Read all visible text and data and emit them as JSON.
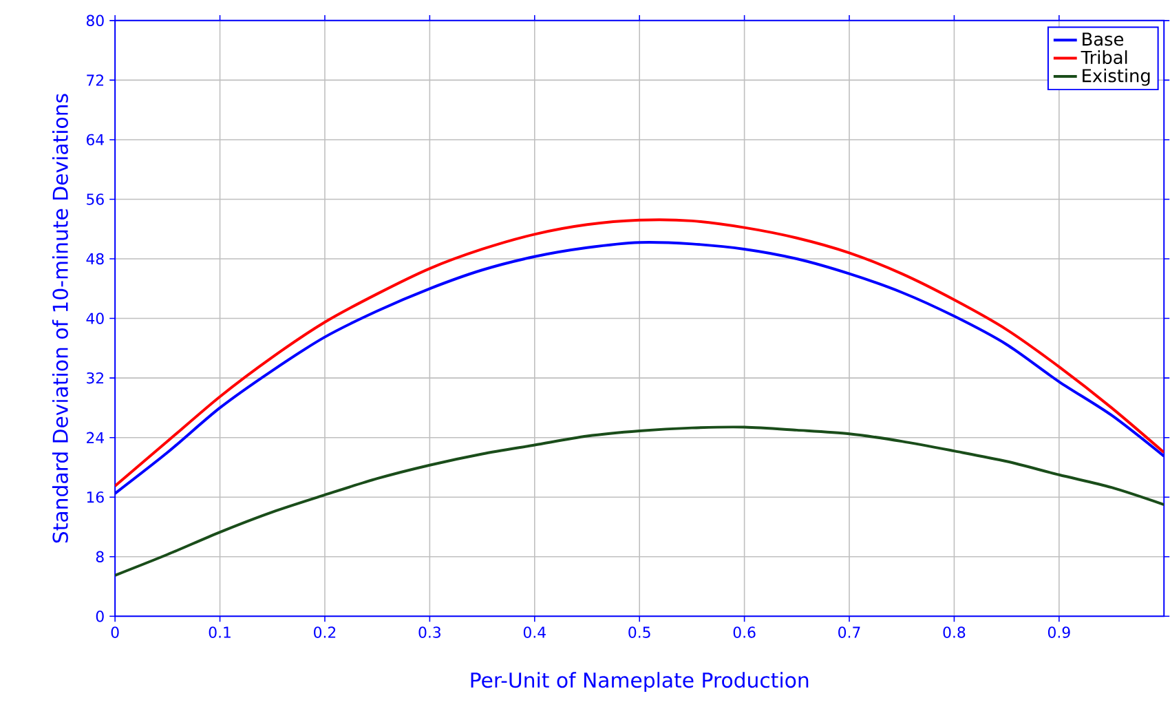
{
  "chart_data": {
    "type": "line",
    "xlabel": "Per-Unit of Nameplate Production",
    "ylabel": "Standard Deviation of 10-minute Deviations",
    "x": [
      0,
      0.05,
      0.1,
      0.15,
      0.2,
      0.25,
      0.3,
      0.35,
      0.4,
      0.45,
      0.5,
      0.55,
      0.6,
      0.65,
      0.7,
      0.75,
      0.8,
      0.85,
      0.9,
      0.95,
      1.0
    ],
    "series": [
      {
        "name": "Base",
        "color": "#0000ff",
        "values": [
          16.5,
          22,
          28,
          33,
          37.5,
          41,
          44,
          46.5,
          48.3,
          49.5,
          50.2,
          50,
          49.3,
          48,
          46,
          43.5,
          40.3,
          36.5,
          31.5,
          27,
          21.5
        ]
      },
      {
        "name": "Tribal",
        "color": "#ff0000",
        "values": [
          17.5,
          23.5,
          29.5,
          34.8,
          39.5,
          43.3,
          46.7,
          49.3,
          51.3,
          52.6,
          53.2,
          53.1,
          52.2,
          50.8,
          48.8,
          46,
          42.5,
          38.5,
          33.5,
          28,
          22
        ]
      },
      {
        "name": "Existing",
        "color": "#1a4d1a",
        "values": [
          5.5,
          8.3,
          11.3,
          14,
          16.3,
          18.5,
          20.3,
          21.8,
          23,
          24.2,
          24.9,
          25.3,
          25.4,
          25,
          24.5,
          23.5,
          22.2,
          20.8,
          19,
          17.3,
          15
        ]
      }
    ],
    "xlim": [
      0,
      1
    ],
    "ylim": [
      0,
      80
    ],
    "xticks": [
      0,
      0.1,
      0.2,
      0.3,
      0.4,
      0.5,
      0.6,
      0.7,
      0.8,
      0.9
    ],
    "yticks": [
      0,
      8,
      16,
      24,
      32,
      40,
      48,
      56,
      64,
      72,
      80
    ],
    "grid": true,
    "legend": "top right",
    "marker": "none",
    "line_style": "solid"
  }
}
